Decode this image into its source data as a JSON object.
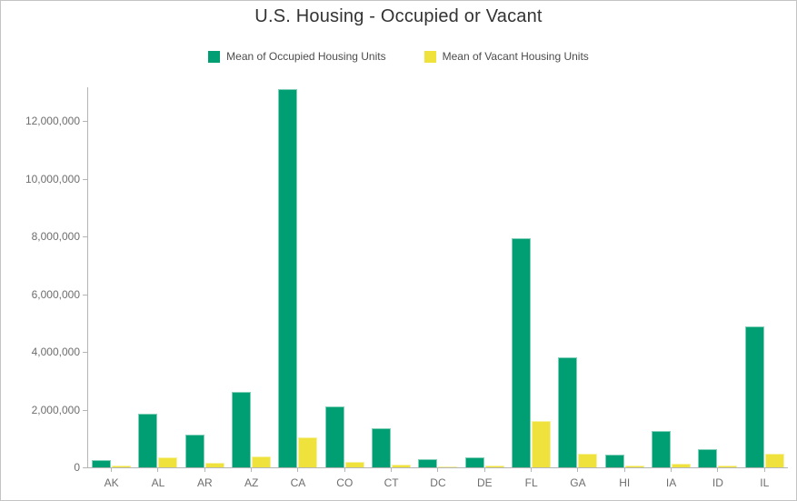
{
  "window": {
    "background": "#ffffff",
    "border_color": "#c4c4c4"
  },
  "colors": {
    "occupied_green": "#009e73",
    "vacant_yellow": "#efe23d",
    "axis_line": "#b5b5b5",
    "axis_label": "#6e6e6e",
    "title_text": "#333333",
    "legend_text": "#4c4c4c"
  },
  "chart_data": {
    "type": "bar",
    "title": "U.S. Housing - Occupied or Vacant",
    "xlabel": "",
    "ylabel": "",
    "grid": false,
    "legend_position": "top",
    "categories": [
      "AK",
      "AL",
      "AR",
      "AZ",
      "CA",
      "CO",
      "CT",
      "DC",
      "DE",
      "FL",
      "GA",
      "HI",
      "IA",
      "ID",
      "IL"
    ],
    "series": [
      {
        "name": "Mean of Occupied Housing Units",
        "color": "#009e73",
        "values": [
          250000,
          1850000,
          1150000,
          2610000,
          13100000,
          2100000,
          1350000,
          280000,
          360000,
          7940000,
          3810000,
          440000,
          1250000,
          630000,
          4880000
        ]
      },
      {
        "name": "Mean of Vacant Housing Units",
        "color": "#efe23d",
        "values": [
          65000,
          340000,
          160000,
          390000,
          1050000,
          190000,
          90000,
          30000,
          65000,
          1600000,
          470000,
          75000,
          115000,
          80000,
          470000
        ]
      }
    ],
    "ylim": [
      0,
      13200000
    ],
    "yticks": [
      0,
      2000000,
      4000000,
      6000000,
      8000000,
      10000000,
      12000000
    ],
    "ytick_labels": [
      "0",
      "2,000,000",
      "4,000,000",
      "6,000,000",
      "8,000,000",
      "10,000,000",
      "12,000,000"
    ]
  }
}
